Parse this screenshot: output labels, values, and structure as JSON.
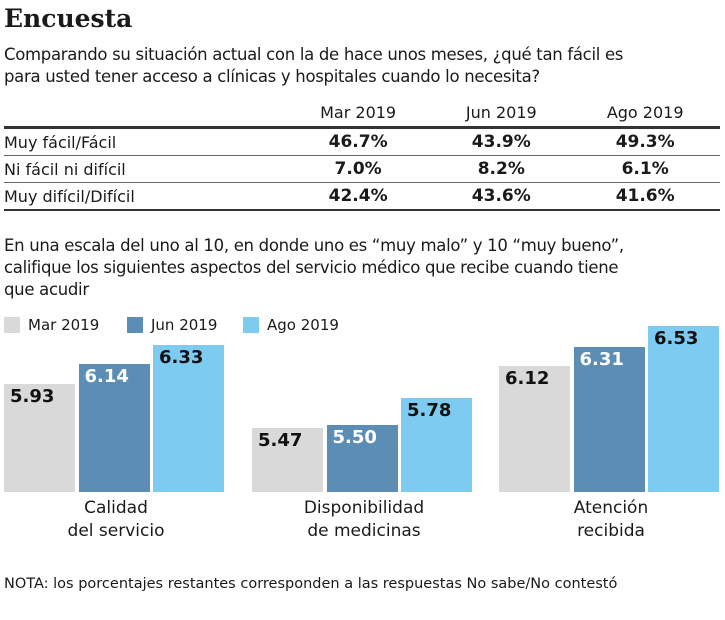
{
  "title": "Encuesta",
  "question1": [
    "Comparando su situación actual con la de hace unos meses, ¿qué tan fácil es",
    "para usted tener acceso a clínicas y hospitales cuando lo necesita?"
  ],
  "table": {
    "headers": [
      "",
      "Mar 2019",
      "Jun 2019",
      "Ago 2019"
    ],
    "rows": [
      {
        "label": "Muy fácil/Fácil",
        "values": [
          "46.7%",
          "43.9%",
          "49.3%"
        ]
      },
      {
        "label": "Ni fácil ni difícil",
        "values": [
          "7.0%",
          "8.2%",
          "6.1%"
        ]
      },
      {
        "label": "Muy difícil/Difícil",
        "values": [
          "42.4%",
          "43.6%",
          "41.6%"
        ]
      }
    ]
  },
  "question2": [
    "En una escala del uno al 10, en donde uno es “muy malo” y 10 “muy bueno”,",
    "califique los siguientes aspectos del servicio médico que recibe cuando tiene",
    "que acudir"
  ],
  "chart_data": {
    "type": "bar",
    "categories": [
      [
        "Calidad",
        "del servicio"
      ],
      [
        "Disponibilidad",
        "de medicinas"
      ],
      [
        "Atención",
        "recibida"
      ]
    ],
    "series": [
      {
        "name": "Mar 2019",
        "values": [
          5.93,
          5.47,
          6.12
        ],
        "color": "#d9d9d9",
        "label_color": "#111111"
      },
      {
        "name": "Jun 2019",
        "values": [
          6.14,
          5.5,
          6.31
        ],
        "color": "#5b8db5",
        "label_color": "#ffffff"
      },
      {
        "name": "Ago 2019",
        "values": [
          6.33,
          5.78,
          6.53
        ],
        "color": "#7ecbf2",
        "label_color": "#111111"
      }
    ],
    "ylim": [
      4.8,
      6.7
    ],
    "legend": "top-left",
    "grid": false
  },
  "note": "NOTA: los porcentajes restantes corresponden a las respuestas No sabe/No contestó"
}
